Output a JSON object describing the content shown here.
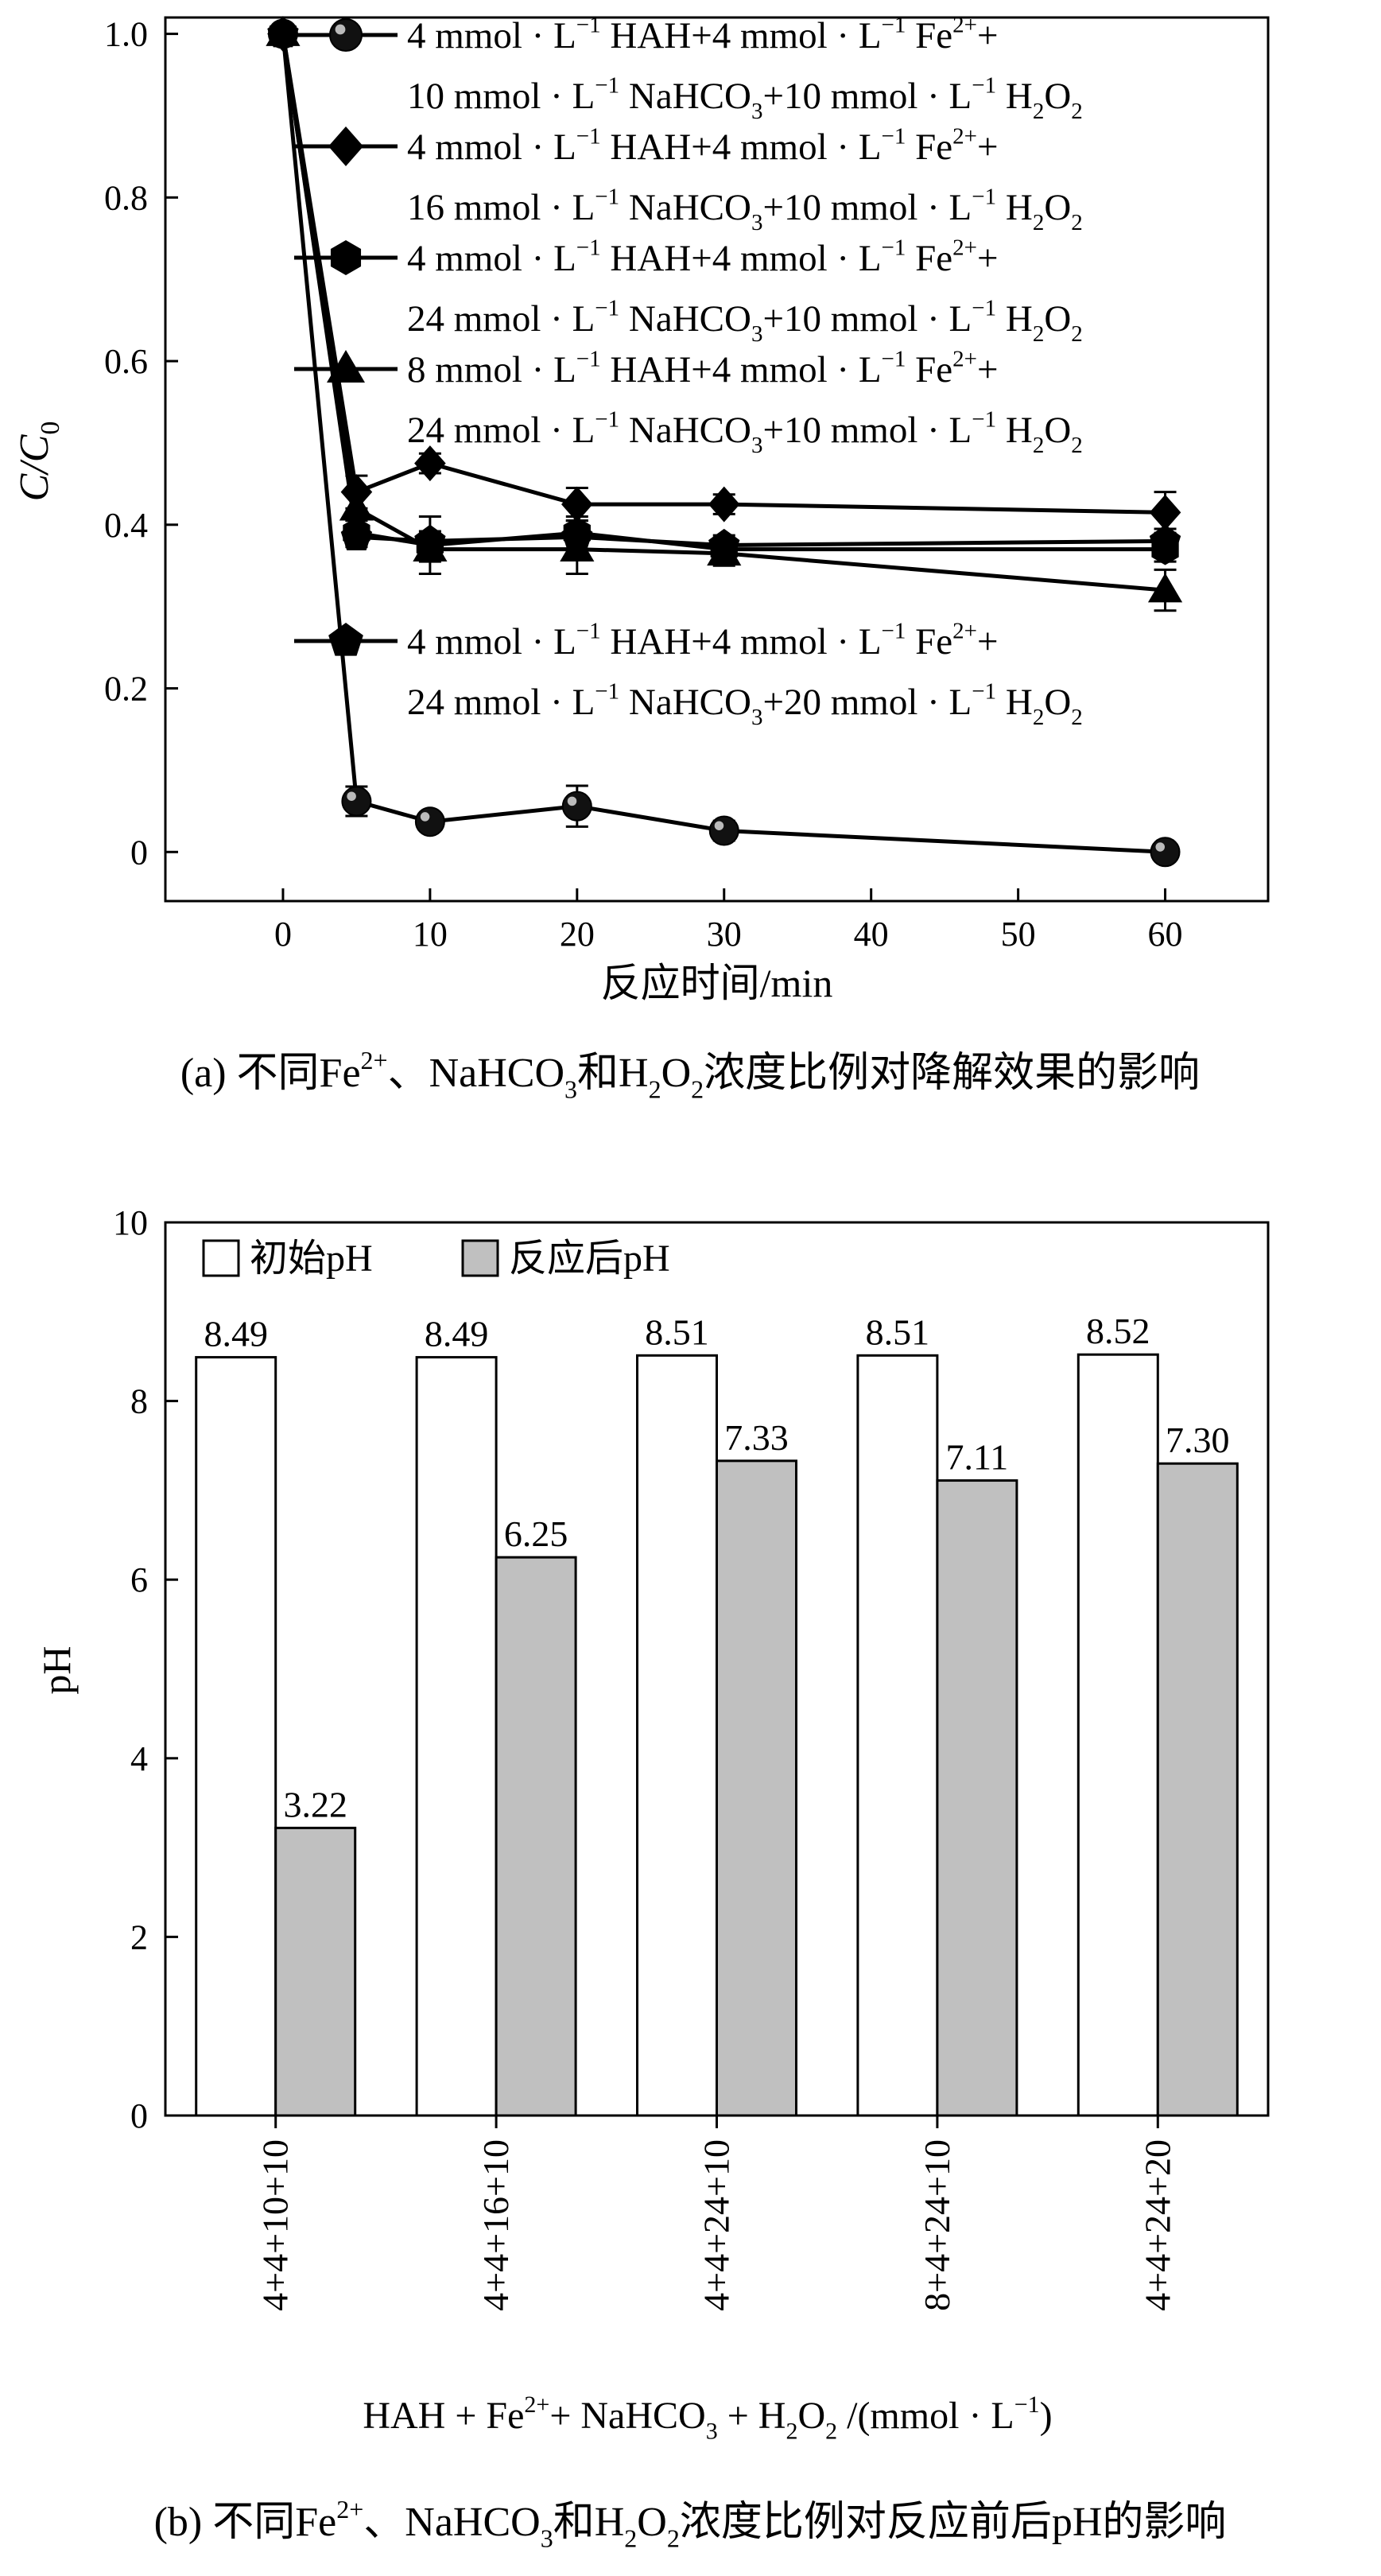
{
  "chart_data": [
    {
      "type": "line",
      "caption": {
        "prefix": "(a) 不同Fe",
        "prefix_sup": "2+",
        "mid1": "、NaHCO",
        "mid1_sub": "3",
        "mid2": "和H",
        "mid2_sub": "2",
        "mid3": "O",
        "mid3_sub": "2",
        "suffix": "浓度比例对降解效果的影响"
      },
      "xlabel": "反应时间/min",
      "ylabel": {
        "main": "C/C",
        "sub": "0"
      },
      "xlim": [
        -8,
        67
      ],
      "ylim": [
        -0.06,
        1.02
      ],
      "xticks": [
        0,
        10,
        20,
        30,
        40,
        50,
        60
      ],
      "yticks": [
        0,
        0.2,
        0.4,
        0.6,
        0.8,
        1.0
      ],
      "ytick_labels": [
        "0",
        "0.2",
        "0.4",
        "0.6",
        "0.8",
        "1.0"
      ],
      "grid": false,
      "legend_position": "top-right",
      "x": [
        0,
        5,
        10,
        20,
        30,
        60
      ],
      "series": [
        {
          "marker": "sphere",
          "values": [
            1.0,
            0.062,
            0.037,
            0.056,
            0.026,
            0.0
          ],
          "errors": [
            0,
            0.018,
            0.01,
            0.025,
            0.012,
            0.006
          ],
          "legend_line1": {
            "a": "4 mmol · L",
            "a_sup": "−1",
            "b": " HAH+4 mmol · L",
            "b_sup": "−1",
            "c": " Fe",
            "c_sup": "2+",
            "d": "+"
          },
          "legend_line2": {
            "a": "10 mmol · L",
            "a_sup": "−1",
            "b": " NaHCO",
            "b_sub": "3",
            "c": "+10 mmol · L",
            "c_sup": "−1",
            "d": " H",
            "d_sub": "2",
            "e": "O",
            "e_sub": "2"
          }
        },
        {
          "marker": "diamond",
          "values": [
            1.0,
            0.44,
            0.475,
            0.425,
            0.425,
            0.415
          ],
          "errors": [
            0,
            0.02,
            0.012,
            0.02,
            0.012,
            0.025
          ],
          "legend_line1": {
            "a": "4 mmol · L",
            "a_sup": "−1",
            "b": " HAH+4 mmol · L",
            "b_sup": "−1",
            "c": " Fe",
            "c_sup": "2+",
            "d": "+"
          },
          "legend_line2": {
            "a": "16 mmol · L",
            "a_sup": "−1",
            "b": " NaHCO",
            "b_sub": "3",
            "c": "+10 mmol · L",
            "c_sup": "−1",
            "d": " H",
            "d_sub": "2",
            "e": "O",
            "e_sub": "2"
          }
        },
        {
          "marker": "hexagon",
          "values": [
            1.0,
            0.39,
            0.375,
            0.39,
            0.37,
            0.37
          ],
          "errors": [
            0,
            0.015,
            0.035,
            0.02,
            0.012,
            0.015
          ],
          "legend_line1": {
            "a": "4 mmol · L",
            "a_sup": "−1",
            "b": " HAH+4 mmol · L",
            "b_sup": "−1",
            "c": " Fe",
            "c_sup": "2+",
            "d": "+"
          },
          "legend_line2": {
            "a": "24 mmol · L",
            "a_sup": "−1",
            "b": " NaHCO",
            "b_sub": "3",
            "c": "+10 mmol · L",
            "c_sup": "−1",
            "d": " H",
            "d_sub": "2",
            "e": "O",
            "e_sub": "2"
          }
        },
        {
          "marker": "triangle",
          "values": [
            1.0,
            0.42,
            0.37,
            0.37,
            0.365,
            0.32
          ],
          "errors": [
            0,
            0.015,
            0.015,
            0.03,
            0.015,
            0.025
          ],
          "legend_line1": {
            "a": "8 mmol · L",
            "a_sup": "−1",
            "b": " HAH+4 mmol · L",
            "b_sup": "−1",
            "c": " Fe",
            "c_sup": "2+",
            "d": "+"
          },
          "legend_line2": {
            "a": "24 mmol · L",
            "a_sup": "−1",
            "b": " NaHCO",
            "b_sub": "3",
            "c": "+10 mmol · L",
            "c_sup": "−1",
            "d": " H",
            "d_sub": "2",
            "e": "O",
            "e_sub": "2"
          }
        },
        {
          "marker": "pentagon",
          "values": [
            1.0,
            0.385,
            0.38,
            0.385,
            0.375,
            0.38
          ],
          "errors": [
            0,
            0.012,
            0.012,
            0.02,
            0.012,
            0.015
          ],
          "legend_line1": {
            "a": "4 mmol · L",
            "a_sup": "−1",
            "b": " HAH+4 mmol · L",
            "b_sup": "−1",
            "c": " Fe",
            "c_sup": "2+",
            "d": "+"
          },
          "legend_line2": {
            "a": "24 mmol · L",
            "a_sup": "−1",
            "b": " NaHCO",
            "b_sub": "3",
            "c": "+20 mmol · L",
            "c_sup": "−1",
            "d": " H",
            "d_sub": "2",
            "e": "O",
            "e_sub": "2"
          }
        }
      ]
    },
    {
      "type": "bar",
      "caption": {
        "prefix": "(b) 不同Fe",
        "prefix_sup": "2+",
        "mid1": "、NaHCO",
        "mid1_sub": "3",
        "mid2": "和H",
        "mid2_sub": "2",
        "mid3": "O",
        "mid3_sub": "2",
        "suffix": "浓度比例对反应前后pH的影响"
      },
      "xlabel": {
        "a": "HAH + Fe",
        "a_sup": "2+",
        "b": "+ NaHCO",
        "b_sub": "3",
        "c": " + H",
        "c_sub": "2",
        "d": "O",
        "d_sub": "2",
        "e": " /(mmol · L",
        "e_sup": "−1",
        "f": ")"
      },
      "ylabel": "pH",
      "ylim": [
        0,
        10
      ],
      "yticks": [
        0,
        2,
        4,
        6,
        8,
        10
      ],
      "grid": false,
      "legend_position": "top-left",
      "categories": [
        "4+4+10+10",
        "4+4+16+10",
        "4+4+24+10",
        "8+4+24+10",
        "4+4+24+20"
      ],
      "series": [
        {
          "name": "初始pH",
          "color": "#ffffff",
          "values": [
            8.49,
            8.49,
            8.51,
            8.51,
            8.52
          ],
          "labels": [
            "8.49",
            "8.49",
            "8.51",
            "8.51",
            "8.52"
          ]
        },
        {
          "name": "反应后pH",
          "color": "#c0c0c0",
          "values": [
            3.22,
            6.25,
            7.33,
            7.11,
            7.3
          ],
          "labels": [
            "3.22",
            "6.25",
            "7.33",
            "7.11",
            "7.30"
          ]
        }
      ]
    }
  ]
}
